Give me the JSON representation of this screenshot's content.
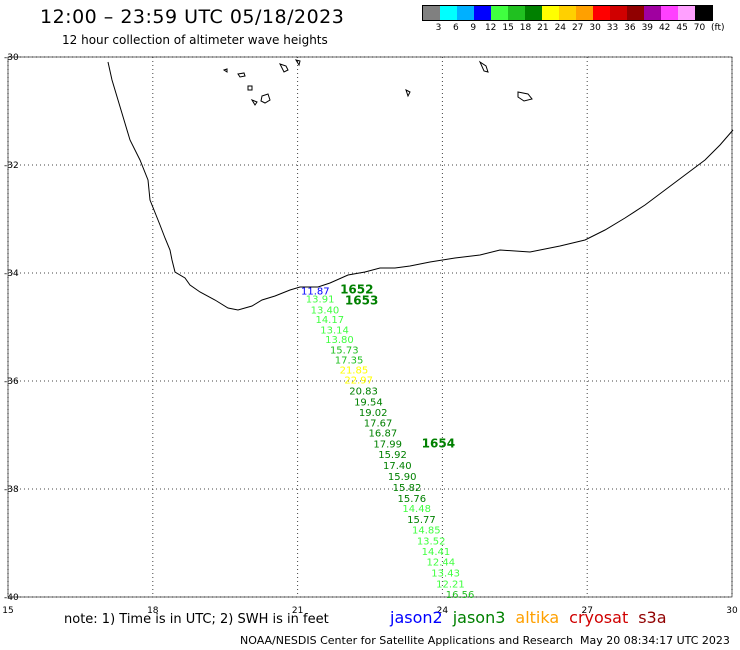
{
  "title": "12:00 – 23:59 UTC 05/18/2023",
  "subtitle": "12 hour collection of altimeter wave heights",
  "legend": {
    "colors": [
      "#808080",
      "#00ffff",
      "#00b0ff",
      "#0000ff",
      "#40ff40",
      "#20c020",
      "#008000",
      "#ffff00",
      "#ffd000",
      "#ffa000",
      "#ff0000",
      "#d00000",
      "#900000",
      "#a000a0",
      "#ff40ff",
      "#ffa0ff",
      "#000000"
    ],
    "labels": [
      "3",
      "6",
      "9",
      "12",
      "15",
      "18",
      "21",
      "24",
      "27",
      "30",
      "33",
      "36",
      "39",
      "42",
      "45",
      "70"
    ],
    "unit": "(ft)"
  },
  "axes": {
    "lat_ticks": [
      "-30",
      "-32",
      "-34",
      "-36",
      "-38",
      "-40"
    ],
    "lon_ticks": [
      "15",
      "18",
      "21",
      "24",
      "27",
      "30"
    ]
  },
  "track_labels": [
    {
      "text": "11.87",
      "lon": 21.07,
      "lat": -34.4,
      "color": "#0000ff"
    },
    {
      "text": "1652",
      "lon": 21.88,
      "lat": -34.38,
      "color": "#008000"
    },
    {
      "text": "13.91",
      "lon": 21.17,
      "lat": -34.55,
      "color": "#40ff40"
    },
    {
      "text": "1653",
      "lon": 21.98,
      "lat": -34.58,
      "color": "#008000"
    },
    {
      "text": "13.40",
      "lon": 21.27,
      "lat": -34.75,
      "color": "#40ff40"
    },
    {
      "text": "14.17",
      "lon": 21.37,
      "lat": -34.93,
      "color": "#40ff40"
    },
    {
      "text": "13.14",
      "lon": 21.47,
      "lat": -35.12,
      "color": "#40ff40"
    },
    {
      "text": "13.80",
      "lon": 21.57,
      "lat": -35.3,
      "color": "#40ff40"
    },
    {
      "text": "15.73",
      "lon": 21.67,
      "lat": -35.49,
      "color": "#20c020"
    },
    {
      "text": "17.35",
      "lon": 21.77,
      "lat": -35.68,
      "color": "#20c020"
    },
    {
      "text": "21.85",
      "lon": 21.87,
      "lat": -35.86,
      "color": "#ffff00"
    },
    {
      "text": "22.97",
      "lon": 21.97,
      "lat": -36.05,
      "color": "#ffff00"
    },
    {
      "text": "20.83",
      "lon": 22.07,
      "lat": -36.25,
      "color": "#008000"
    },
    {
      "text": "19.54",
      "lon": 22.17,
      "lat": -36.45,
      "color": "#008000"
    },
    {
      "text": "19.02",
      "lon": 22.27,
      "lat": -36.65,
      "color": "#008000"
    },
    {
      "text": "17.67",
      "lon": 22.37,
      "lat": -36.84,
      "color": "#008000"
    },
    {
      "text": "16.87",
      "lon": 22.47,
      "lat": -37.03,
      "color": "#008000"
    },
    {
      "text": "17.99",
      "lon": 22.57,
      "lat": -37.23,
      "color": "#008000"
    },
    {
      "text": "1654",
      "lon": 23.57,
      "lat": -37.23,
      "color": "#008000"
    },
    {
      "text": "15.92",
      "lon": 22.67,
      "lat": -37.43,
      "color": "#008000"
    },
    {
      "text": "17.40",
      "lon": 22.77,
      "lat": -37.63,
      "color": "#008000"
    },
    {
      "text": "15.90",
      "lon": 22.87,
      "lat": -37.83,
      "color": "#008000"
    },
    {
      "text": "15.82",
      "lon": 22.97,
      "lat": -38.04,
      "color": "#008000"
    },
    {
      "text": "15.76",
      "lon": 23.07,
      "lat": -38.24,
      "color": "#008000"
    },
    {
      "text": "14.48",
      "lon": 23.17,
      "lat": -38.43,
      "color": "#40ff40"
    },
    {
      "text": "15.77",
      "lon": 23.27,
      "lat": -38.63,
      "color": "#008000"
    },
    {
      "text": "14.85",
      "lon": 23.37,
      "lat": -38.82,
      "color": "#40ff40"
    },
    {
      "text": "13.52",
      "lon": 23.47,
      "lat": -39.03,
      "color": "#40ff40"
    },
    {
      "text": "14.41",
      "lon": 23.57,
      "lat": -39.22,
      "color": "#40ff40"
    },
    {
      "text": "12.44",
      "lon": 23.67,
      "lat": -39.42,
      "color": "#40ff40"
    },
    {
      "text": "13.43",
      "lon": 23.77,
      "lat": -39.62,
      "color": "#40ff40"
    },
    {
      "text": "12.21",
      "lon": 23.87,
      "lat": -39.82,
      "color": "#40ff40"
    },
    {
      "text": "16.56",
      "lon": 24.07,
      "lat": -40.02,
      "color": "#20c020"
    }
  ],
  "note": "note:  1) Time is in UTC;  2) SWH is in feet",
  "satellites": [
    {
      "name": "jason2",
      "color": "#0000ff"
    },
    {
      "name": "jason3",
      "color": "#008000"
    },
    {
      "name": "altika",
      "color": "#ffa000"
    },
    {
      "name": "cryosat",
      "color": "#d00000"
    },
    {
      "name": "s3a",
      "color": "#900000"
    }
  ],
  "credit": "NOAA/NESDIS Center for Satellite Applications and Research",
  "timestamp": "May 20 08:34:17 UTC 2023"
}
